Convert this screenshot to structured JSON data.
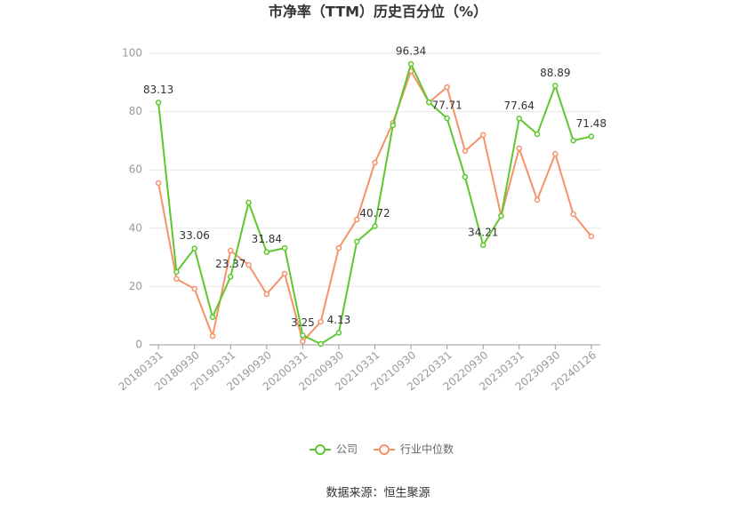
{
  "chart_data": {
    "type": "line",
    "title": "市净率（TTM）历史百分位（%）",
    "source": "数据来源：恒生聚源",
    "categories": [
      "20180331",
      null,
      "20180930",
      null,
      "20190331",
      null,
      "20190930",
      null,
      "20200331",
      null,
      "20200930",
      null,
      "20210331",
      null,
      "20210930",
      null,
      "20220331",
      null,
      "20220930",
      null,
      "20230331",
      null,
      "20230930",
      null,
      "20240126"
    ],
    "series": [
      {
        "name": "公司",
        "color": "#5ec72e",
        "values": [
          83.13,
          25,
          33.06,
          9.5,
          23.37,
          48.8,
          31.84,
          33.2,
          3.25,
          0.3,
          4.13,
          35.4,
          40.72,
          75.3,
          96.34,
          83.2,
          77.71,
          57.6,
          34.21,
          44.2,
          77.64,
          72.3,
          88.89,
          70.1,
          71.48
        ],
        "value_labels": [
          "83.13",
          null,
          "33.06",
          null,
          "23.37",
          null,
          "31.84",
          null,
          "3.25",
          null,
          "4.13",
          null,
          "40.72",
          null,
          "96.34",
          null,
          "77.71",
          null,
          "34.21",
          null,
          "77.64",
          null,
          "88.89",
          null,
          "71.48"
        ]
      },
      {
        "name": "行业中位数",
        "color": "#f4936a",
        "values": [
          55.5,
          22.6,
          19.2,
          3,
          32.3,
          27.4,
          17.4,
          24.4,
          1.2,
          7.9,
          33.2,
          43,
          62.5,
          76.2,
          93.9,
          83.2,
          88.4,
          66.5,
          72,
          44.2,
          67.4,
          49.7,
          65.5,
          44.8,
          37.2
        ]
      }
    ],
    "ylim": [
      0,
      100
    ],
    "yticks": [
      0,
      20,
      40,
      60,
      80,
      100
    ],
    "grid": true,
    "legend": "bottom"
  }
}
